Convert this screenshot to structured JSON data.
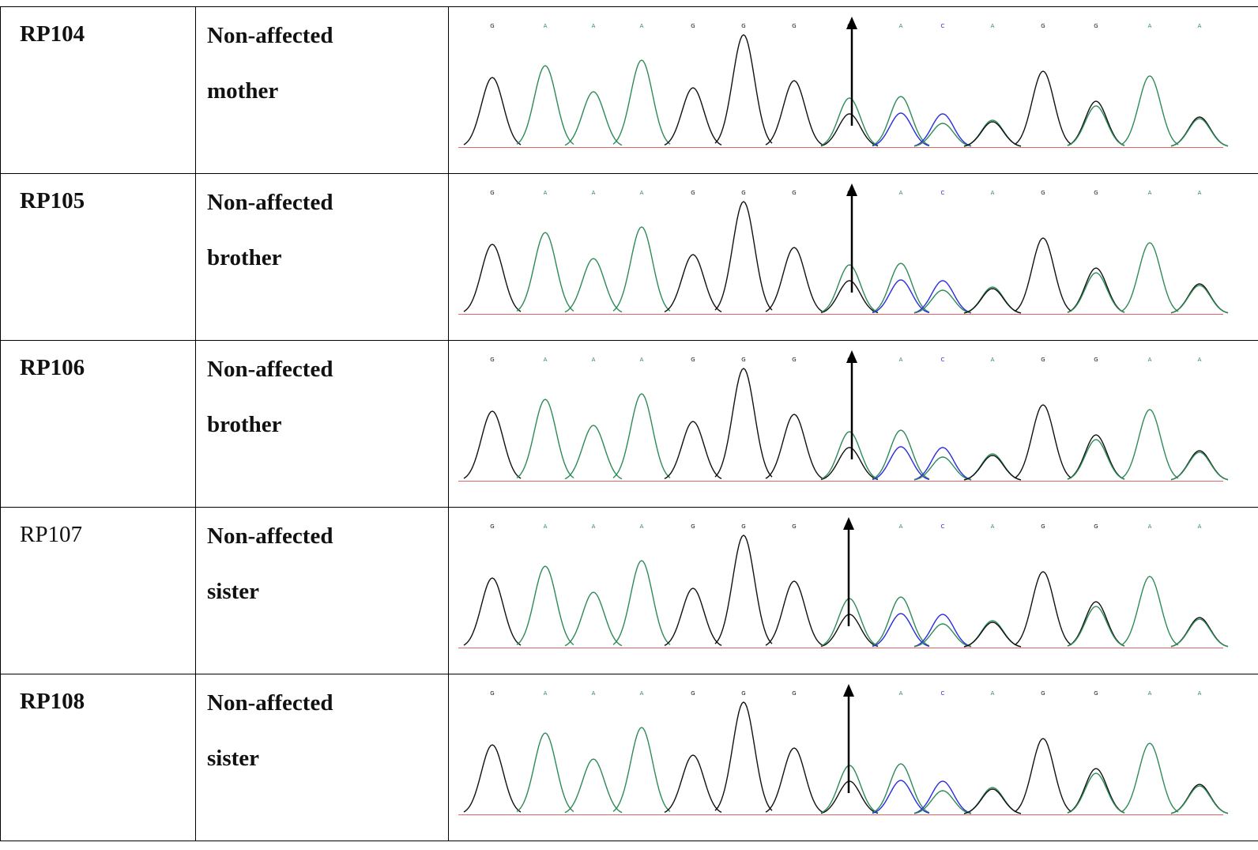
{
  "rows": [
    {
      "id": "RP104",
      "id_bold": true,
      "line1": "Non-affected",
      "line2": "mother"
    },
    {
      "id": "RP105",
      "id_bold": true,
      "line1": "Non-affected",
      "line2": "brother"
    },
    {
      "id": "RP106",
      "id_bold": true,
      "line1": "Non-affected",
      "line2": "brother"
    },
    {
      "id": "RP107",
      "id_bold": false,
      "line1": "Non-affected",
      "line2": "sister"
    },
    {
      "id": "RP108",
      "id_bold": true,
      "line1": "Non-affected",
      "line2": "sister"
    }
  ],
  "chromatogram": {
    "base_calls": [
      "G",
      "A",
      "A",
      "A",
      "G",
      "G",
      "G",
      "G",
      "A",
      "C",
      "A",
      "G",
      "G",
      "A",
      "A"
    ],
    "colors": {
      "G": "#111111",
      "A": "#2e8b57",
      "C": "#2a2ae0",
      "T": "#d04040"
    },
    "marker": "arrow"
  }
}
